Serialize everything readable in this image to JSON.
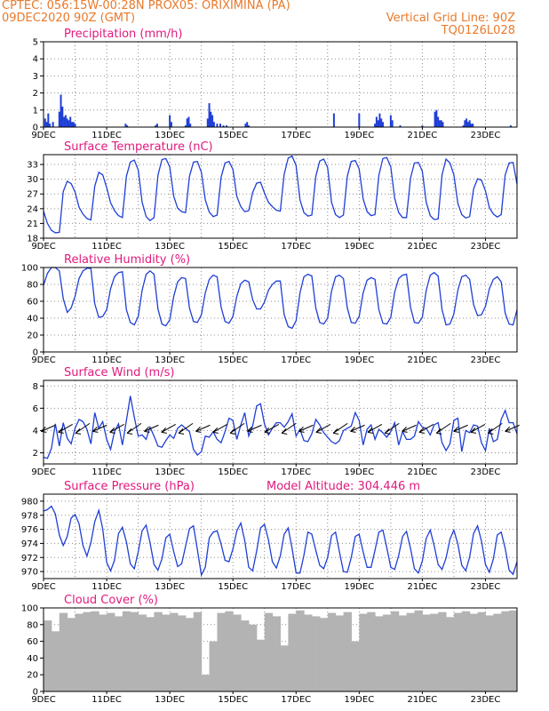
{
  "header": {
    "line1_left": "CPTEC:   056:15W-00:28N   PROX05: ORIXIMINA (PA)",
    "line2_left": "09DEC2020 90Z (GMT)",
    "line2_right": "Vertical Grid Line: 90Z",
    "line3_right": "TQ0126L028"
  },
  "colors": {
    "header_text": "#e8792b",
    "panel_title": "#e0197d",
    "series_line": "#1f3fd6",
    "bars": "#1f3fd6",
    "cloud_fill": "#b3b3b3",
    "grid": "#8c8c8c"
  },
  "x_tick_labels": [
    "9DEC",
    "11DEC",
    "13DEC",
    "15DEC",
    "17DEC",
    "19DEC",
    "21DEC",
    "23DEC"
  ],
  "chart_data": [
    {
      "type": "bar",
      "title": "Precipitation (mm/h)",
      "ylim": [
        0,
        5
      ],
      "yticks": [
        "0",
        "1",
        "2",
        "3",
        "4",
        "5"
      ],
      "grid": true,
      "x": [
        0.05,
        0.1,
        0.15,
        0.2,
        0.3,
        0.5,
        0.55,
        0.6,
        0.65,
        0.7,
        0.75,
        0.8,
        0.85,
        0.9,
        0.95,
        1.0,
        2.6,
        2.65,
        3.55,
        3.6,
        4.0,
        4.05,
        4.5,
        4.55,
        4.6,
        4.65,
        5.2,
        5.25,
        5.3,
        5.35,
        5.4,
        5.5,
        5.6,
        5.7,
        5.8,
        6.4,
        6.45,
        6.5,
        9.2,
        10.0,
        10.5,
        10.55,
        10.6,
        10.65,
        10.7,
        10.75,
        11.0,
        11.05,
        11.3,
        12.0,
        12.4,
        12.45,
        12.5,
        12.55,
        12.6,
        12.65,
        13.3,
        13.35,
        13.4,
        13.45,
        13.5,
        13.55,
        13.6,
        14.8
      ],
      "values": [
        0.5,
        0.3,
        0.8,
        0.2,
        0.3,
        0.9,
        1.9,
        1.2,
        0.6,
        0.7,
        0.5,
        0.4,
        0.6,
        0.3,
        0.3,
        0.2,
        0.2,
        0.1,
        0.1,
        0.2,
        0.7,
        0.3,
        0.1,
        0.5,
        0.6,
        0.2,
        0.5,
        1.4,
        0.9,
        0.7,
        0.3,
        0.2,
        0.2,
        0.1,
        0.1,
        0.2,
        0.3,
        0.1,
        0.8,
        0.8,
        0.2,
        0.6,
        0.4,
        0.8,
        0.5,
        0.3,
        0.7,
        0.4,
        0.1,
        0.1,
        0.9,
        1.0,
        0.6,
        0.4,
        0.4,
        0.3,
        0.1,
        0.4,
        0.5,
        0.3,
        0.4,
        0.2,
        0.2,
        0.1
      ]
    },
    {
      "type": "line",
      "title": "Surface Temperature (nC)",
      "ylim": [
        18,
        35
      ],
      "yticks": [
        "18",
        "21",
        "24",
        "27",
        "30",
        "33"
      ],
      "grid": true,
      "x": [
        0,
        0.125,
        0.25,
        0.375,
        0.5,
        0.625,
        0.75,
        0.875,
        1,
        1.125,
        1.25,
        1.375,
        1.5,
        1.625,
        1.75,
        1.875,
        2,
        2.125,
        2.25,
        2.375,
        2.5,
        2.625,
        2.75,
        2.875,
        3,
        3.125,
        3.25,
        3.375,
        3.5,
        3.625,
        3.75,
        3.875,
        4,
        4.125,
        4.25,
        4.375,
        4.5,
        4.625,
        4.75,
        4.875,
        5,
        5.125,
        5.25,
        5.375,
        5.5,
        5.625,
        5.75,
        5.875,
        6,
        6.125,
        6.25,
        6.375,
        6.5,
        6.625,
        6.75,
        6.875,
        7,
        7.125,
        7.25,
        7.375,
        7.5,
        7.625,
        7.75,
        7.875,
        8,
        8.125,
        8.25,
        8.375,
        8.5,
        8.625,
        8.75,
        8.875,
        9,
        9.125,
        9.25,
        9.375,
        9.5,
        9.625,
        9.75,
        9.875,
        10,
        10.125,
        10.25,
        10.375,
        10.5,
        10.625,
        10.75,
        10.875,
        11,
        11.125,
        11.25,
        11.375,
        11.5,
        11.625,
        11.75,
        11.875,
        12,
        12.125,
        12.25,
        12.375,
        12.5,
        12.625,
        12.75,
        12.875,
        13,
        13.125,
        13.25,
        13.375,
        13.5,
        13.625,
        13.75,
        13.875,
        14,
        14.125,
        14.25,
        14.375,
        14.5,
        14.625,
        14.75,
        14.875,
        15
      ],
      "values": [
        23.5,
        21,
        19.6,
        19.1,
        19.2,
        27.5,
        29.6,
        29.1,
        27.4,
        24.3,
        22.9,
        22,
        21.7,
        28.6,
        31.4,
        30.9,
        28.3,
        25.2,
        23.6,
        22.6,
        22.2,
        30.6,
        33.5,
        33.9,
        31.9,
        25.3,
        22.4,
        21.6,
        22.2,
        30.8,
        34,
        34.2,
        32.5,
        26.5,
        24.1,
        23.4,
        23.2,
        30.6,
        33.5,
        33.6,
        31.4,
        25.8,
        23.3,
        22.4,
        22.7,
        30.4,
        33.3,
        33.6,
        32,
        26.5,
        24.4,
        23.4,
        23.6,
        27.3,
        29.2,
        29.4,
        27.2,
        25.3,
        24.4,
        23.7,
        23.5,
        31,
        34.3,
        34.7,
        32.8,
        25.8,
        23.2,
        22.5,
        22.7,
        30.6,
        33.7,
        34.1,
        32.4,
        25.3,
        22.8,
        22.2,
        22.7,
        30.6,
        33.6,
        33.8,
        32.1,
        26,
        23.4,
        22.6,
        22.8,
        30.8,
        34.2,
        34.4,
        32.5,
        26.1,
        23.2,
        22.2,
        22.2,
        30.2,
        33.3,
        33.4,
        31.6,
        25.3,
        22.6,
        21.8,
        21.9,
        30.9,
        34.1,
        33.3,
        30.9,
        25.1,
        22.8,
        22.1,
        22.4,
        28,
        30.1,
        29.8,
        27.6,
        24.2,
        22.9,
        22.3,
        22.8,
        30.9,
        33.3,
        33.4,
        29
      ]
    },
    {
      "type": "line",
      "title": "Relative Humidity (%)",
      "ylim": [
        0,
        100
      ],
      "yticks": [
        "0",
        "20",
        "40",
        "60",
        "80",
        "100"
      ],
      "grid": true,
      "x": [
        0,
        0.125,
        0.25,
        0.375,
        0.5,
        0.625,
        0.75,
        0.875,
        1,
        1.125,
        1.25,
        1.375,
        1.5,
        1.625,
        1.75,
        1.875,
        2,
        2.125,
        2.25,
        2.375,
        2.5,
        2.625,
        2.75,
        2.875,
        3,
        3.125,
        3.25,
        3.375,
        3.5,
        3.625,
        3.75,
        3.875,
        4,
        4.125,
        4.25,
        4.375,
        4.5,
        4.625,
        4.75,
        4.875,
        5,
        5.125,
        5.25,
        5.375,
        5.5,
        5.625,
        5.75,
        5.875,
        6,
        6.125,
        6.25,
        6.375,
        6.5,
        6.625,
        6.75,
        6.875,
        7,
        7.125,
        7.25,
        7.375,
        7.5,
        7.625,
        7.75,
        7.875,
        8,
        8.125,
        8.25,
        8.375,
        8.5,
        8.625,
        8.75,
        8.875,
        9,
        9.125,
        9.25,
        9.375,
        9.5,
        9.625,
        9.75,
        9.875,
        10,
        10.125,
        10.25,
        10.375,
        10.5,
        10.625,
        10.75,
        10.875,
        11,
        11.125,
        11.25,
        11.375,
        11.5,
        11.625,
        11.75,
        11.875,
        12,
        12.125,
        12.25,
        12.375,
        12.5,
        12.625,
        12.75,
        12.875,
        13,
        13.125,
        13.25,
        13.375,
        13.5,
        13.625,
        13.75,
        13.875,
        14,
        14.125,
        14.25,
        14.375,
        14.5,
        14.625,
        14.75,
        14.875,
        15
      ],
      "values": [
        79,
        93,
        100,
        100,
        96,
        63,
        47,
        52,
        66,
        87,
        96,
        99,
        99,
        57,
        41,
        42,
        50,
        75,
        89,
        94,
        95,
        50,
        35,
        32,
        42,
        73,
        92,
        96,
        92,
        51,
        33,
        31,
        38,
        66,
        83,
        88,
        87,
        52,
        36,
        35,
        44,
        70,
        86,
        91,
        89,
        53,
        36,
        34,
        42,
        66,
        81,
        85,
        83,
        62,
        51,
        51,
        59,
        73,
        80,
        84,
        84,
        44,
        30,
        28,
        37,
        70,
        89,
        92,
        90,
        52,
        35,
        33,
        40,
        72,
        89,
        91,
        87,
        52,
        35,
        34,
        42,
        70,
        85,
        88,
        86,
        50,
        34,
        33,
        41,
        71,
        87,
        91,
        92,
        53,
        35,
        34,
        41,
        73,
        91,
        94,
        90,
        50,
        32,
        33,
        45,
        73,
        89,
        91,
        86,
        56,
        43,
        44,
        54,
        75,
        86,
        89,
        83,
        46,
        33,
        32,
        50
      ]
    },
    {
      "type": "line",
      "title": "Surface Wind (m/s)",
      "ylim": [
        1,
        8.5
      ],
      "yticks": [
        "2",
        "4",
        "6",
        "8"
      ],
      "grid": true,
      "x": [
        0,
        0.125,
        0.25,
        0.375,
        0.5,
        0.625,
        0.75,
        0.875,
        1,
        1.125,
        1.25,
        1.375,
        1.5,
        1.625,
        1.75,
        1.875,
        2,
        2.125,
        2.25,
        2.375,
        2.5,
        2.625,
        2.75,
        2.875,
        3,
        3.125,
        3.25,
        3.375,
        3.5,
        3.625,
        3.75,
        3.875,
        4,
        4.125,
        4.25,
        4.375,
        4.5,
        4.625,
        4.75,
        4.875,
        5,
        5.125,
        5.25,
        5.375,
        5.5,
        5.625,
        5.75,
        5.875,
        6,
        6.125,
        6.25,
        6.375,
        6.5,
        6.625,
        6.75,
        6.875,
        7,
        7.125,
        7.25,
        7.375,
        7.5,
        7.625,
        7.75,
        7.875,
        8,
        8.125,
        8.25,
        8.375,
        8.5,
        8.625,
        8.75,
        8.875,
        9,
        9.125,
        9.25,
        9.375,
        9.5,
        9.625,
        9.75,
        9.875,
        10,
        10.125,
        10.25,
        10.375,
        10.5,
        10.625,
        10.75,
        10.875,
        11,
        11.125,
        11.25,
        11.375,
        11.5,
        11.625,
        11.75,
        11.875,
        12,
        12.125,
        12.25,
        12.375,
        12.5,
        12.625,
        12.75,
        12.875,
        13,
        13.125,
        13.25,
        13.375,
        13.5,
        13.625,
        13.75,
        13.875,
        14,
        14.125,
        14.25,
        14.375,
        14.5,
        14.625,
        14.75,
        14.875,
        15
      ],
      "values": [
        1.6,
        1.5,
        2.4,
        4.6,
        2.6,
        4.7,
        3.3,
        2.8,
        4.2,
        5,
        4.8,
        4.1,
        2.8,
        5.6,
        4.2,
        4.8,
        3.2,
        2.3,
        3.9,
        4.6,
        2.7,
        4.9,
        7.1,
        5.2,
        3.5,
        3.6,
        3.2,
        4.3,
        3.5,
        2.6,
        2.5,
        3.1,
        3.6,
        3.3,
        4.2,
        4.5,
        4.2,
        3.9,
        2.3,
        1.8,
        2.1,
        3.5,
        3.4,
        3.9,
        3.2,
        2.9,
        3.9,
        5.1,
        4.9,
        3.2,
        4.5,
        5.6,
        3.5,
        4.4,
        6.2,
        6.4,
        4.6,
        3.6,
        4.2,
        4.7,
        4.7,
        4.3,
        4.8,
        5.5,
        3.5,
        4.1,
        3.1,
        3,
        3.7,
        5,
        4.5,
        3.8,
        3.4,
        3,
        2.8,
        3.1,
        4,
        4.2,
        4.4,
        5.6,
        4.9,
        2.7,
        4.1,
        4.5,
        3.2,
        4.1,
        3.8,
        3.4,
        3.9,
        4.7,
        2.7,
        3.9,
        3.2,
        3.2,
        3.5,
        4.8,
        4.3,
        4.2,
        3.6,
        4.5,
        4.7,
        2.9,
        2.2,
        2.8,
        4.9,
        5.1,
        2.1,
        4,
        3.8,
        4.5,
        4.4,
        2.9,
        2.2,
        4.2,
        3,
        3.2,
        5,
        5.8,
        4.7,
        4.7,
        3.7
      ],
      "vector_count": 28
    },
    {
      "type": "line",
      "title": "Surface Pressure (hPa)",
      "annotation": "Model Altitude: 304.446  m",
      "ylim": [
        969,
        981
      ],
      "yticks": [
        "970",
        "972",
        "974",
        "976",
        "978",
        "980"
      ],
      "grid": true,
      "x": [
        0,
        0.125,
        0.25,
        0.375,
        0.5,
        0.625,
        0.75,
        0.875,
        1,
        1.125,
        1.25,
        1.375,
        1.5,
        1.625,
        1.75,
        1.875,
        2,
        2.125,
        2.25,
        2.375,
        2.5,
        2.625,
        2.75,
        2.875,
        3,
        3.125,
        3.25,
        3.375,
        3.5,
        3.625,
        3.75,
        3.875,
        4,
        4.125,
        4.25,
        4.375,
        4.5,
        4.625,
        4.75,
        4.875,
        5,
        5.125,
        5.25,
        5.375,
        5.5,
        5.625,
        5.75,
        5.875,
        6,
        6.125,
        6.25,
        6.375,
        6.5,
        6.625,
        6.75,
        6.875,
        7,
        7.125,
        7.25,
        7.375,
        7.5,
        7.625,
        7.75,
        7.875,
        8,
        8.125,
        8.25,
        8.375,
        8.5,
        8.625,
        8.75,
        8.875,
        9,
        9.125,
        9.25,
        9.375,
        9.5,
        9.625,
        9.75,
        9.875,
        10,
        10.125,
        10.25,
        10.375,
        10.5,
        10.625,
        10.75,
        10.875,
        11,
        11.125,
        11.25,
        11.375,
        11.5,
        11.625,
        11.75,
        11.875,
        12,
        12.125,
        12.25,
        12.375,
        12.5,
        12.625,
        12.75,
        12.875,
        13,
        13.125,
        13.25,
        13.375,
        13.5,
        13.625,
        13.75,
        13.875,
        14,
        14.125,
        14.25,
        14.375,
        14.5,
        14.625,
        14.75,
        14.875,
        15
      ],
      "values": [
        978.6,
        978.8,
        979.3,
        978.2,
        975.2,
        973.7,
        975,
        977.6,
        978.1,
        976.8,
        973.7,
        972.2,
        974.1,
        977.1,
        978.7,
        976.1,
        971.3,
        970.1,
        971.6,
        975.4,
        976.3,
        974.2,
        971.1,
        970.4,
        972.8,
        975.8,
        976.6,
        974.1,
        971,
        970.2,
        971.8,
        974.8,
        975.3,
        972.8,
        970.7,
        971.1,
        973.6,
        976.1,
        976.5,
        973.1,
        969.5,
        970.6,
        974.8,
        975.6,
        975.8,
        973.9,
        971.6,
        971.4,
        973.2,
        975.8,
        976.9,
        974.4,
        970.6,
        970.1,
        972.9,
        976.2,
        976.7,
        974.5,
        971.4,
        970.5,
        972.2,
        975.3,
        976.2,
        973.3,
        969.8,
        969.8,
        972.3,
        975.6,
        975.3,
        973,
        970.9,
        970.4,
        972,
        975.1,
        975.6,
        972.8,
        970,
        969.9,
        972,
        975,
        975.3,
        972.8,
        970.6,
        970.6,
        973,
        975.6,
        975.9,
        973.4,
        970.6,
        970.3,
        972.3,
        975,
        975.7,
        973.3,
        970.4,
        969.8,
        971.5,
        974.7,
        975.9,
        973.7,
        971,
        970.3,
        971.9,
        974.6,
        975.9,
        973.9,
        970.9,
        970.1,
        972.1,
        975.4,
        976.5,
        974.3,
        971,
        969.9,
        971.8,
        975.2,
        975.6,
        973.3,
        970.2,
        969.6,
        971.4
      ]
    },
    {
      "type": "area",
      "title": "Cloud Cover (%)",
      "ylim": [
        0,
        100
      ],
      "yticks": [
        "0",
        "20",
        "40",
        "60",
        "80",
        "100"
      ],
      "grid": true,
      "x": [
        0,
        0.25,
        0.5,
        0.75,
        1,
        1.25,
        1.5,
        1.75,
        2,
        2.25,
        2.5,
        2.75,
        3,
        3.25,
        3.5,
        3.75,
        4,
        4.25,
        4.5,
        4.75,
        5,
        5.25,
        5.5,
        5.75,
        6,
        6.25,
        6.5,
        6.75,
        7,
        7.25,
        7.5,
        7.75,
        8,
        8.25,
        8.5,
        8.75,
        9,
        9.25,
        9.5,
        9.75,
        10,
        10.25,
        10.5,
        10.75,
        11,
        11.25,
        11.5,
        11.75,
        12,
        12.25,
        12.5,
        12.75,
        13,
        13.25,
        13.5,
        13.75,
        14,
        14.25,
        14.5,
        14.75,
        15
      ],
      "values": [
        85,
        72,
        94,
        88,
        93,
        95,
        96,
        92,
        94,
        90,
        96,
        95,
        92,
        89,
        95,
        92,
        94,
        91,
        88,
        95,
        20,
        60,
        94,
        96,
        92,
        85,
        80,
        62,
        94,
        90,
        55,
        93,
        97,
        92,
        90,
        88,
        94,
        91,
        95,
        60,
        93,
        95,
        90,
        92,
        96,
        91,
        94,
        97,
        92,
        93,
        95,
        89,
        94,
        96,
        93,
        95,
        91,
        93,
        96,
        97,
        95
      ]
    }
  ]
}
